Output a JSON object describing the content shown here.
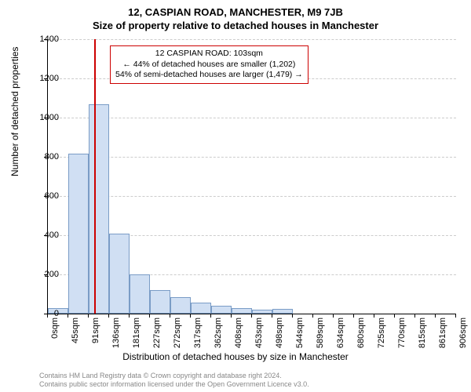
{
  "title_line1": "12, CASPIAN ROAD, MANCHESTER, M9 7JB",
  "title_line2": "Size of property relative to detached houses in Manchester",
  "chart": {
    "type": "histogram",
    "ylabel": "Number of detached properties",
    "xlabel": "Distribution of detached houses by size in Manchester",
    "ylim": [
      0,
      1400
    ],
    "ytick_step": 200,
    "yticks": [
      0,
      200,
      400,
      600,
      800,
      1000,
      1200,
      1400
    ],
    "xticks": [
      "0sqm",
      "45sqm",
      "91sqm",
      "136sqm",
      "181sqm",
      "227sqm",
      "272sqm",
      "317sqm",
      "362sqm",
      "408sqm",
      "453sqm",
      "498sqm",
      "544sqm",
      "589sqm",
      "634sqm",
      "680sqm",
      "725sqm",
      "770sqm",
      "815sqm",
      "861sqm",
      "906sqm"
    ],
    "bar_values": [
      30,
      815,
      1070,
      410,
      200,
      120,
      85,
      55,
      40,
      30,
      22,
      25,
      0,
      0,
      0,
      0,
      0,
      0,
      0,
      0
    ],
    "bar_fill": "#d0dff3",
    "bar_border": "#7a9cc6",
    "grid_color": "#cccccc",
    "background_color": "#ffffff",
    "marker_value": 103,
    "marker_x_range": [
      0,
      906
    ],
    "marker_color": "#cc0000",
    "title_fontsize": 13,
    "label_fontsize": 12,
    "tick_fontsize": 11
  },
  "annotation": {
    "line1": "12 CASPIAN ROAD: 103sqm",
    "line2": "← 44% of detached houses are smaller (1,202)",
    "line3": "54% of semi-detached houses are larger (1,479) →",
    "border_color": "#cc0000",
    "fontsize": 10.5
  },
  "footer": {
    "line1": "Contains HM Land Registry data © Crown copyright and database right 2024.",
    "line2": "Contains public sector information licensed under the Open Government Licence v3.0.",
    "color": "#888888",
    "fontsize": 9
  }
}
